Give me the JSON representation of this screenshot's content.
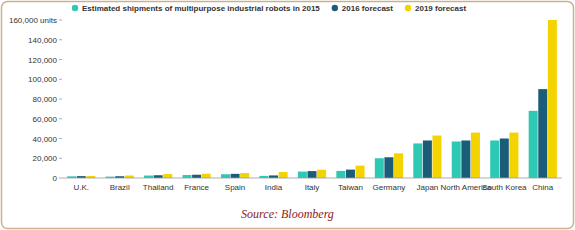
{
  "chart_data": {
    "type": "bar",
    "categories": [
      "U.K.",
      "Brazil",
      "Thailand",
      "France",
      "Spain",
      "India",
      "Italy",
      "Taiwan",
      "Germany",
      "Japan",
      "North America",
      "South Korea",
      "China"
    ],
    "series": [
      {
        "name": "Estimated shipments of multipurpose industrial robots in 2015",
        "color": "#2ec9b5",
        "values": [
          1700,
          1400,
          2500,
          3000,
          3800,
          2100,
          6500,
          7200,
          20000,
          35000,
          37000,
          38000,
          68000
        ]
      },
      {
        "name": "2016 forecast",
        "color": "#1b5c78",
        "values": [
          1900,
          1800,
          2800,
          3300,
          4200,
          2600,
          7000,
          8500,
          21000,
          38000,
          38000,
          40000,
          90000
        ]
      },
      {
        "name": "2019 forecast",
        "color": "#f4d400",
        "values": [
          2000,
          2500,
          4000,
          4300,
          5000,
          6000,
          8400,
          12500,
          25000,
          43000,
          46000,
          46000,
          160000
        ]
      }
    ],
    "ylim": [
      0,
      160000
    ],
    "yticks": [
      0,
      {
        "value": 20000,
        "label": "20,000"
      },
      {
        "value": 40000,
        "label": "40,000"
      },
      {
        "value": 60000,
        "label": "60,000"
      },
      {
        "value": 80000,
        "label": "80,000"
      },
      {
        "value": 100000,
        "label": "100,000"
      },
      {
        "value": 120000,
        "label": "120,000"
      },
      {
        "value": 140000,
        "label": "140,000"
      },
      {
        "value": 160000,
        "label": "160,000 units"
      }
    ],
    "grid": false,
    "legend": "top-left",
    "source": "Source: Bloomberg"
  }
}
